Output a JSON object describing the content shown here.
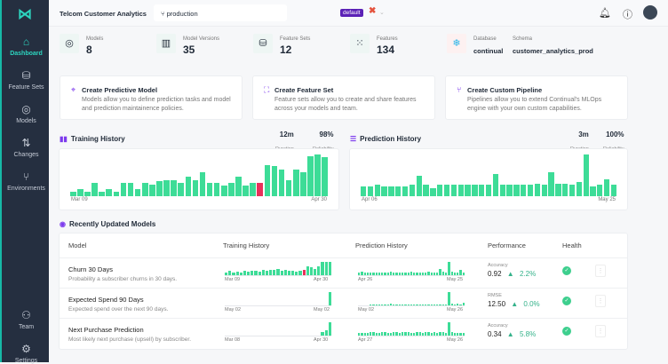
{
  "app": {
    "title": "Telcom Customer Analytics",
    "branch": "production",
    "branch_badge": "default"
  },
  "sidebar": {
    "items": [
      {
        "label": "Dashboard",
        "icon": "home-icon"
      },
      {
        "label": "Feature Sets",
        "icon": "database-icon"
      },
      {
        "label": "Models",
        "icon": "target-icon"
      },
      {
        "label": "Changes",
        "icon": "diff-icon"
      },
      {
        "label": "Environments",
        "icon": "branch-icon"
      },
      {
        "label": "Team",
        "icon": "users-icon"
      },
      {
        "label": "Settings",
        "icon": "gear-icon"
      }
    ]
  },
  "stats": {
    "models": {
      "label": "Models",
      "value": "8"
    },
    "versions": {
      "label": "Model Versions",
      "value": "35"
    },
    "feature_sets": {
      "label": "Feature Sets",
      "value": "12"
    },
    "features": {
      "label": "Features",
      "value": "134"
    },
    "database": {
      "label": "Database",
      "value": "continual"
    },
    "schema": {
      "label": "Schema",
      "value": "customer_analytics_prod"
    }
  },
  "cards": [
    {
      "title": "Create Predictive Model",
      "desc": "Models allow you to define prediction tasks and model and prediction maintainence policies."
    },
    {
      "title": "Create Feature Set",
      "desc": "Feature sets allow you to create and share features across your models and team."
    },
    {
      "title": "Create Custom Pipeline",
      "desc": "Pipelines allow you to extend Continual's MLOps engine with your own custom capabilities."
    }
  ],
  "training": {
    "title": "Training History",
    "duration": "12m",
    "duration_label": "Duration",
    "reliability": "98%",
    "reliability_label": "Reliability",
    "start": "Mar 09",
    "end": "Apr 30"
  },
  "prediction": {
    "title": "Prediction History",
    "duration": "3m",
    "duration_label": "Duration",
    "reliability": "100%",
    "reliability_label": "Reliability",
    "start": "Apr 06",
    "end": "May 25"
  },
  "chart_data": [
    {
      "type": "bar",
      "title": "Training History",
      "x_start": "Mar 09",
      "x_end": "Apr 30",
      "values": [
        3,
        5,
        3,
        9,
        3,
        5,
        3,
        9,
        9,
        5,
        9,
        8,
        10,
        11,
        11,
        9,
        13,
        11,
        16,
        9,
        9,
        7,
        9,
        13,
        7,
        9,
        9,
        21,
        20,
        18,
        11,
        18,
        16,
        27,
        28,
        26
      ],
      "failed_index": [
        26
      ],
      "colors": {
        "success": "#3ddc97",
        "failed": "#e8315b"
      }
    },
    {
      "type": "bar",
      "title": "Prediction History",
      "x_start": "Apr 06",
      "x_end": "May 25",
      "values": [
        7,
        7,
        8,
        7,
        7,
        7,
        7,
        8,
        15,
        8,
        6,
        8,
        8,
        8,
        8,
        8,
        8,
        8,
        8,
        16,
        8,
        8,
        8,
        8,
        8,
        9,
        8,
        17,
        9,
        9,
        8,
        10,
        30,
        7,
        8,
        12,
        8
      ],
      "colors": {
        "success": "#3ddc97"
      }
    }
  ],
  "recent": {
    "title": "Recently Updated Models",
    "headers": [
      "Model",
      "Training History",
      "Prediction History",
      "Performance",
      "Health"
    ],
    "rows": [
      {
        "name": "Churn 30 Days",
        "desc": "Probability a subscriber churns in 30 days.",
        "train_start": "Mar 09",
        "train_end": "Apr 30",
        "pred_start": "Apr 26",
        "pred_end": "May 25",
        "metric": "Accuracy",
        "value": "0.92",
        "delta": "2.2%",
        "health": "healthy",
        "train": [
          3,
          5,
          3,
          4,
          3,
          5,
          4,
          5,
          5,
          4,
          6,
          5,
          6,
          6,
          7,
          5,
          6,
          5,
          5,
          4,
          5,
          6,
          9,
          8,
          7,
          9,
          14,
          14,
          14
        ],
        "train_fail": [
          21
        ],
        "pred": [
          2,
          3,
          2,
          2,
          2,
          2,
          2,
          2,
          2,
          2,
          2,
          3,
          2,
          2,
          2,
          2,
          2,
          2,
          3,
          2,
          2,
          2,
          2,
          2,
          3,
          2,
          2,
          2,
          5,
          3,
          2,
          10,
          3,
          2,
          2,
          4,
          2
        ]
      },
      {
        "name": "Expected Spend 90 Days",
        "desc": "Expected spend over the next 90 days.",
        "train_start": "May 02",
        "train_end": "May 02",
        "pred_start": "May 02",
        "pred_end": "May 26",
        "metric": "RMSE",
        "value": "12.50",
        "delta": "0.0%",
        "health": "healthy",
        "train": [
          0,
          0,
          0,
          0,
          0,
          0,
          0,
          0,
          0,
          0,
          0,
          0,
          0,
          0,
          0,
          0,
          0,
          0,
          0,
          0,
          0,
          0,
          0,
          0,
          0,
          0,
          0,
          0,
          16
        ],
        "train_fail": [],
        "pred": [
          0,
          0,
          0,
          0,
          1,
          1,
          1,
          1,
          1,
          1,
          1,
          2,
          1,
          1,
          1,
          1,
          1,
          1,
          1,
          1,
          1,
          1,
          1,
          1,
          1,
          1,
          1,
          1,
          1,
          1,
          1,
          14,
          2,
          1,
          2,
          1,
          3
        ]
      },
      {
        "name": "Next Purchase Prediction",
        "desc": "Most likely next purchase (upsell) by subscriber.",
        "train_start": "Mar 08",
        "train_end": "Apr 30",
        "pred_start": "Apr 27",
        "pred_end": "May 26",
        "metric": "Accuracy",
        "value": "0.34",
        "delta": "5.8%",
        "health": "healthy",
        "train": [
          0,
          0,
          0,
          0,
          0,
          0,
          0,
          0,
          0,
          0,
          0,
          0,
          0,
          0,
          0,
          0,
          0,
          0,
          0,
          0,
          0,
          0,
          0,
          0,
          0,
          0,
          4,
          6,
          14
        ],
        "train_fail": [],
        "pred": [
          2,
          2,
          2,
          2,
          3,
          3,
          2,
          2,
          3,
          3,
          2,
          2,
          3,
          3,
          2,
          3,
          3,
          3,
          2,
          2,
          3,
          3,
          2,
          3,
          3,
          2,
          3,
          2,
          3,
          3,
          2,
          10,
          3,
          2,
          2,
          2,
          2
        ]
      }
    ]
  }
}
